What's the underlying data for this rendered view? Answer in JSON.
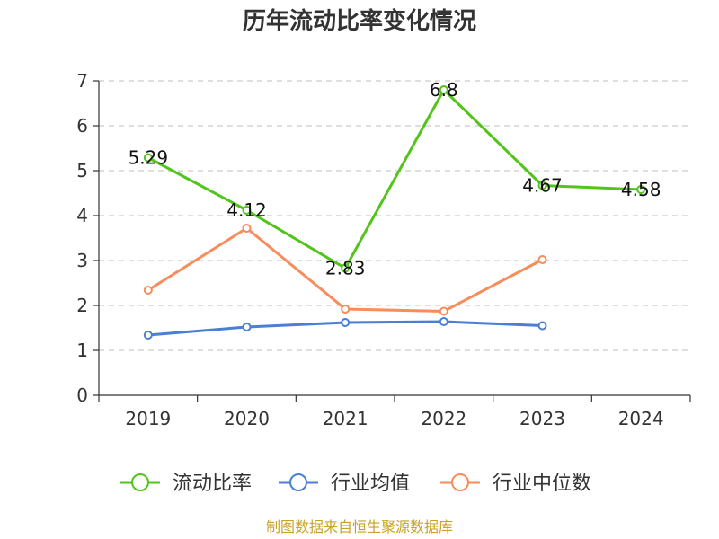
{
  "chart_data": {
    "type": "line",
    "title": "历年流动比率变化情况",
    "categories": [
      "2019",
      "2020",
      "2021",
      "2022",
      "2023",
      "2024"
    ],
    "ylim": [
      0,
      7
    ],
    "yticks": [
      0,
      1,
      2,
      3,
      4,
      5,
      6,
      7
    ],
    "grid": true,
    "legend_position": "bottom",
    "series": [
      {
        "name": "流动比率",
        "color": "#52c41a",
        "values": [
          5.29,
          4.12,
          2.83,
          6.8,
          4.67,
          4.58
        ],
        "labels": [
          "5.29",
          "4.12",
          "2.83",
          "6.8",
          "4.67",
          "4.58"
        ]
      },
      {
        "name": "行业均值",
        "color": "#4a7fd6",
        "values": [
          1.34,
          1.52,
          1.62,
          1.64,
          1.55,
          null
        ]
      },
      {
        "name": "行业中位数",
        "color": "#f88c5b",
        "values": [
          2.34,
          3.72,
          1.92,
          1.87,
          3.02,
          null
        ]
      }
    ]
  },
  "source": "制图数据来自恒生聚源数据库"
}
